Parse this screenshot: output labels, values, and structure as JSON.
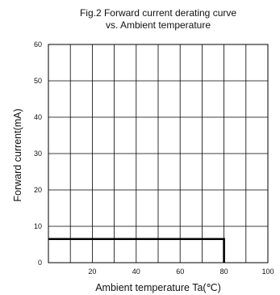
{
  "chart_data": {
    "type": "line",
    "title": "Fig.2 Forward current derating curve",
    "subtitle": "vs. Ambient temperature",
    "xlabel": "Ambient temperature Ta(℃)",
    "ylabel": "Forward current(mA)",
    "xlim": [
      0,
      100
    ],
    "ylim": [
      0,
      60
    ],
    "xticks": [
      "20",
      "40",
      "60",
      "80",
      "100"
    ],
    "yticks": [
      "0",
      "10",
      "20",
      "30",
      "40",
      "50",
      "60"
    ],
    "x_grid_step": 10,
    "y_grid_step": 10,
    "grid": true,
    "series": [
      {
        "color": "#000000",
        "x": [
          0,
          80,
          80
        ],
        "y": [
          6.5,
          6.5,
          0
        ]
      }
    ]
  }
}
